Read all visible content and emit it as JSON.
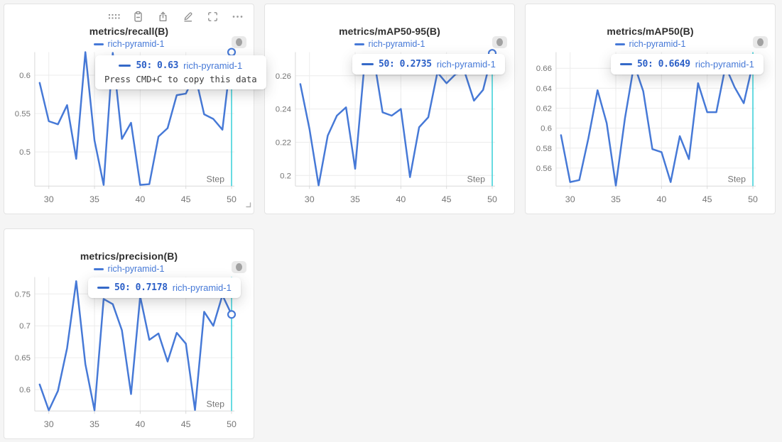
{
  "page": {
    "background": "#f5f5f5",
    "panel_background": "#ffffff"
  },
  "colors": {
    "line": "#4679d7",
    "crosshair": "#35cfd8",
    "grid": "#ececec",
    "axis": "#d9d9d9",
    "tick_text": "#757575",
    "link_blue": "#4679d7",
    "tooltip_value_blue": "#2b5fc7",
    "title_text": "#2f2f2f"
  },
  "panel_toolbar": {
    "icons": [
      "drag-handle",
      "copy-to-clipboard",
      "export",
      "edit-panel",
      "fullscreen",
      "more-options"
    ]
  },
  "chart_data": [
    {
      "type": "line",
      "title": "metrics/recall(B)",
      "xlabel": "Step",
      "ylabel": "",
      "legend_position": "top",
      "grid": true,
      "x": [
        29,
        30,
        31,
        32,
        33,
        34,
        35,
        36,
        37,
        38,
        39,
        40,
        41,
        42,
        43,
        44,
        45,
        46,
        47,
        48,
        49,
        50
      ],
      "series": [
        {
          "name": "rich-pyramid-1",
          "color": "#4679d7",
          "values": [
            0.59,
            0.54,
            0.536,
            0.561,
            0.491,
            0.63,
            0.515,
            0.457,
            0.629,
            0.517,
            0.538,
            0.457,
            0.458,
            0.52,
            0.531,
            0.574,
            0.576,
            0.601,
            0.549,
            0.543,
            0.529,
            0.63
          ]
        }
      ],
      "xticks": [
        30,
        35,
        40,
        45,
        50
      ],
      "yticks": [
        0.5,
        0.55,
        0.6
      ],
      "ytick_labels": [
        "0.5",
        "0.55",
        "0.6"
      ],
      "xlim": [
        28.5,
        50.3
      ],
      "ylim": [
        0.4555,
        0.63
      ],
      "crosshair_step": 50,
      "highlight_point": {
        "x": 50,
        "y": 0.63
      },
      "tooltip": {
        "step_label": "50:",
        "value": "0.63",
        "run": "rich-pyramid-1",
        "hint": "Press CMD+C to copy this data"
      }
    },
    {
      "type": "line",
      "title": "metrics/mAP50-95(B)",
      "xlabel": "Step",
      "ylabel": "",
      "legend_position": "top",
      "grid": true,
      "x": [
        29,
        30,
        31,
        32,
        33,
        34,
        35,
        36,
        37,
        38,
        39,
        40,
        41,
        42,
        43,
        44,
        45,
        46,
        47,
        48,
        49,
        50
      ],
      "series": [
        {
          "name": "rich-pyramid-1",
          "color": "#4679d7",
          "values": [
            0.255,
            0.228,
            0.194,
            0.224,
            0.236,
            0.241,
            0.204,
            0.266,
            0.272,
            0.238,
            0.236,
            0.24,
            0.199,
            0.229,
            0.235,
            0.262,
            0.2555,
            0.261,
            0.262,
            0.245,
            0.2515,
            0.2735
          ]
        }
      ],
      "xticks": [
        30,
        35,
        40,
        45,
        50
      ],
      "yticks": [
        0.2,
        0.22,
        0.24,
        0.26
      ],
      "ytick_labels": [
        "0.2",
        "0.22",
        "0.24",
        "0.26"
      ],
      "xlim": [
        28.5,
        50.3
      ],
      "ylim": [
        0.1936,
        0.2742
      ],
      "crosshair_step": 50,
      "highlight_point": {
        "x": 50,
        "y": 0.2735
      },
      "tooltip": {
        "step_label": "50:",
        "value": "0.2735",
        "run": "rich-pyramid-1"
      }
    },
    {
      "type": "line",
      "title": "metrics/mAP50(B)",
      "xlabel": "Step",
      "ylabel": "",
      "legend_position": "top",
      "grid": true,
      "x": [
        29,
        30,
        31,
        32,
        33,
        34,
        35,
        36,
        37,
        38,
        39,
        40,
        41,
        42,
        43,
        44,
        45,
        46,
        47,
        48,
        49,
        50
      ],
      "series": [
        {
          "name": "rich-pyramid-1",
          "color": "#4679d7",
          "values": [
            0.593,
            0.546,
            0.548,
            0.59,
            0.638,
            0.605,
            0.5425,
            0.61,
            0.664,
            0.637,
            0.579,
            0.576,
            0.546,
            0.592,
            0.569,
            0.645,
            0.616,
            0.616,
            0.662,
            0.641,
            0.625,
            0.6649
          ]
        }
      ],
      "xticks": [
        30,
        35,
        40,
        45,
        50
      ],
      "yticks": [
        0.56,
        0.58,
        0.6,
        0.62,
        0.64,
        0.66
      ],
      "ytick_labels": [
        "0.56",
        "0.58",
        "0.6",
        "0.62",
        "0.64",
        "0.66"
      ],
      "xlim": [
        28.5,
        50.3
      ],
      "ylim": [
        0.542,
        0.6761
      ],
      "crosshair_step": 50,
      "highlight_point": {
        "x": 50,
        "y": 0.6649
      },
      "tooltip": {
        "step_label": "50:",
        "value": "0.6649",
        "run": "rich-pyramid-1"
      }
    },
    {
      "type": "line",
      "title": "metrics/precision(B)",
      "xlabel": "Step",
      "ylabel": "",
      "legend_position": "top",
      "grid": true,
      "x": [
        29,
        30,
        31,
        32,
        33,
        34,
        35,
        36,
        37,
        38,
        39,
        40,
        41,
        42,
        43,
        44,
        45,
        46,
        47,
        48,
        49,
        50
      ],
      "series": [
        {
          "name": "rich-pyramid-1",
          "color": "#4679d7",
          "values": [
            0.608,
            0.5675,
            0.598,
            0.665,
            0.77,
            0.64,
            0.5675,
            0.742,
            0.734,
            0.693,
            0.593,
            0.746,
            0.678,
            0.688,
            0.644,
            0.689,
            0.672,
            0.568,
            0.722,
            0.7,
            0.748,
            0.7178
          ]
        }
      ],
      "xticks": [
        30,
        35,
        40,
        45,
        50
      ],
      "yticks": [
        0.6,
        0.65,
        0.7,
        0.75
      ],
      "ytick_labels": [
        "0.6",
        "0.65",
        "0.7",
        "0.75"
      ],
      "xlim": [
        28.5,
        50.3
      ],
      "ylim": [
        0.5665,
        0.7764
      ],
      "crosshair_step": 50,
      "highlight_point": {
        "x": 50,
        "y": 0.7178
      },
      "tooltip": {
        "step_label": "50:",
        "value": "0.7178",
        "run": "rich-pyramid-1"
      }
    }
  ]
}
